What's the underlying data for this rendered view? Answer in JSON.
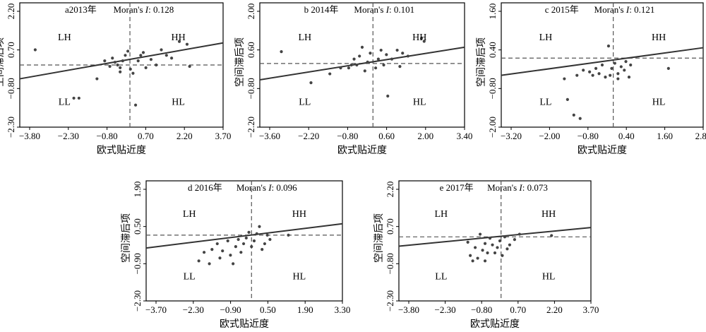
{
  "chart_data": [
    {
      "type": "scatter",
      "panel_label": "a2013年",
      "moran_prefix": "Moran's ",
      "moran_italic": "I",
      "moran_value": ": 0.128",
      "xlabel": "欧式贴近度",
      "ylabel": "空间滞后项",
      "xticks": [
        "−3.80",
        "−2.30",
        "−0.80",
        "0.70",
        "2.20",
        "3.70"
      ],
      "yticks": [
        "2.20",
        "0.70",
        "−0.80",
        "−2.30"
      ],
      "xlim": [
        -4.2,
        3.7
      ],
      "ylim": [
        -2.3,
        2.2
      ],
      "quadrants": [
        "LH",
        "HH",
        "LL",
        "HL"
      ],
      "hline": -0.05,
      "vline": 0.08,
      "fit": [
        [
          -4.2,
          -0.55
        ],
        [
          3.7,
          0.75
        ]
      ],
      "points": [
        [
          -3.6,
          0.5
        ],
        [
          -2.1,
          -1.25
        ],
        [
          -1.9,
          -1.25
        ],
        [
          -1.2,
          -0.55
        ],
        [
          -0.9,
          0.1
        ],
        [
          -0.7,
          -0.1
        ],
        [
          -0.6,
          0.2
        ],
        [
          -0.5,
          0.05
        ],
        [
          -0.4,
          -0.05
        ],
        [
          -0.3,
          -0.15
        ],
        [
          -0.2,
          0.1
        ],
        [
          -0.1,
          0.3
        ],
        [
          0.0,
          0.45
        ],
        [
          0.1,
          -0.2
        ],
        [
          0.2,
          -0.35
        ],
        [
          0.3,
          -1.5
        ],
        [
          0.4,
          0.1
        ],
        [
          0.5,
          0.3
        ],
        [
          0.6,
          0.4
        ],
        [
          0.9,
          0.15
        ],
        [
          1.1,
          -0.05
        ],
        [
          1.3,
          0.5
        ],
        [
          1.5,
          0.3
        ],
        [
          1.7,
          0.2
        ],
        [
          2.0,
          0.8
        ],
        [
          2.3,
          0.7
        ],
        [
          2.4,
          -0.1
        ],
        [
          -0.3,
          -0.3
        ],
        [
          0.7,
          -0.15
        ]
      ]
    },
    {
      "type": "scatter",
      "panel_label": "b 2014年",
      "moran_prefix": "Moran's ",
      "moran_italic": "I",
      "moran_value": ": 0.101",
      "xlabel": "欧式贴近度",
      "ylabel": "空间滞后项",
      "xticks": [
        "−3.60",
        "−2.20",
        "−0.80",
        "0.60",
        "2.00",
        "3.40"
      ],
      "yticks": [
        "2.00",
        "0.60",
        "−0.80",
        "−2.20"
      ],
      "xlim": [
        -4.2,
        3.4
      ],
      "ylim": [
        -2.2,
        2.0
      ],
      "quadrants": [
        "LH",
        "HH",
        "LL",
        "HL"
      ],
      "hline": -0.05,
      "vline": 0.0,
      "fit": [
        [
          -4.2,
          -0.6
        ],
        [
          3.4,
          0.5
        ]
      ],
      "points": [
        [
          -3.4,
          0.35
        ],
        [
          -2.3,
          -0.7
        ],
        [
          -1.6,
          -0.4
        ],
        [
          -1.2,
          -0.2
        ],
        [
          -0.9,
          -0.2
        ],
        [
          -0.7,
          0.1
        ],
        [
          -0.6,
          -0.1
        ],
        [
          -0.5,
          0.2
        ],
        [
          -0.4,
          0.5
        ],
        [
          -0.3,
          -0.3
        ],
        [
          -0.2,
          0.0
        ],
        [
          -0.1,
          0.3
        ],
        [
          0.1,
          -0.2
        ],
        [
          0.2,
          0.1
        ],
        [
          0.3,
          0.4
        ],
        [
          0.4,
          -0.1
        ],
        [
          0.5,
          0.25
        ],
        [
          0.55,
          -1.15
        ],
        [
          0.7,
          0.1
        ],
        [
          0.9,
          0.4
        ],
        [
          1.0,
          -0.15
        ],
        [
          1.1,
          0.3
        ],
        [
          1.3,
          0.2
        ],
        [
          1.8,
          0.8
        ],
        [
          1.9,
          0.7
        ],
        [
          -0.8,
          -0.1
        ]
      ]
    },
    {
      "type": "scatter",
      "panel_label": "c 2015年",
      "moran_prefix": "Moran's ",
      "moran_italic": "I",
      "moran_value": ": 0.121",
      "xlabel": "欧式贴近度",
      "ylabel": "空间滞后项",
      "xticks": [
        "−3.20",
        "−2.00",
        "−0.80",
        "0.40",
        "1.60",
        "2.80"
      ],
      "yticks": [
        "1.60",
        "0.40",
        "−0.80",
        "−2.00"
      ],
      "xlim": [
        -3.6,
        2.8
      ],
      "ylim": [
        -2.0,
        1.6
      ],
      "quadrants": [
        "LH",
        "HH",
        "LL",
        "HL"
      ],
      "hline": 0.0,
      "vline": -0.05,
      "fit": [
        [
          -3.6,
          -0.5
        ],
        [
          2.8,
          0.3
        ]
      ],
      "points": [
        [
          -1.5,
          -1.2
        ],
        [
          -1.3,
          -1.65
        ],
        [
          -1.1,
          -1.75
        ],
        [
          -1.6,
          -0.6
        ],
        [
          -1.2,
          -0.5
        ],
        [
          -1.0,
          -0.35
        ],
        [
          -0.8,
          -0.4
        ],
        [
          -0.6,
          -0.3
        ],
        [
          -0.5,
          -0.45
        ],
        [
          -0.4,
          -0.2
        ],
        [
          -0.3,
          -0.55
        ],
        [
          -0.2,
          0.35
        ],
        [
          -0.15,
          -0.5
        ],
        [
          -0.1,
          -0.3
        ],
        [
          0.0,
          -0.15
        ],
        [
          0.1,
          -0.45
        ],
        [
          0.2,
          -0.25
        ],
        [
          0.3,
          -0.35
        ],
        [
          0.35,
          -0.1
        ],
        [
          0.45,
          -0.55
        ],
        [
          0.5,
          -0.2
        ],
        [
          1.7,
          -0.3
        ],
        [
          -0.7,
          -0.5
        ],
        [
          0.1,
          -0.6
        ]
      ]
    },
    {
      "type": "scatter",
      "panel_label": "d 2016年",
      "moran_prefix": "Moran's ",
      "moran_italic": "I",
      "moran_value": ": 0.096",
      "xlabel": "欧式贴近度",
      "ylabel": "空间滞后项",
      "xticks": [
        "−3.70",
        "−2.30",
        "−0.90",
        "0.50",
        "1.90",
        "3.30"
      ],
      "yticks": [
        "1.90",
        "0.50",
        "−0.90",
        "−2.30"
      ],
      "xlim": [
        -4.0,
        3.45
      ],
      "ylim": [
        -2.3,
        1.9
      ],
      "quadrants": [
        "LH",
        "HH",
        "LL",
        "HL"
      ],
      "hline": 0.0,
      "vline": 0.0,
      "fit": [
        [
          -4.0,
          -0.45
        ],
        [
          3.45,
          0.4
        ]
      ],
      "points": [
        [
          -2.0,
          -0.9
        ],
        [
          -1.8,
          -0.6
        ],
        [
          -1.6,
          -1.0
        ],
        [
          -1.5,
          -0.5
        ],
        [
          -1.3,
          -0.3
        ],
        [
          -1.1,
          -0.55
        ],
        [
          -0.9,
          -0.2
        ],
        [
          -0.8,
          -0.7
        ],
        [
          -0.7,
          -1.0
        ],
        [
          -0.6,
          -0.4
        ],
        [
          -0.5,
          -0.15
        ],
        [
          -0.4,
          -0.6
        ],
        [
          -0.3,
          -0.3
        ],
        [
          -0.2,
          -0.1
        ],
        [
          -0.1,
          0.1
        ],
        [
          0.0,
          -0.4
        ],
        [
          0.1,
          -0.2
        ],
        [
          0.2,
          0.05
        ],
        [
          0.3,
          0.3
        ],
        [
          0.4,
          -0.5
        ],
        [
          0.5,
          -0.3
        ],
        [
          0.6,
          0.0
        ],
        [
          0.7,
          -0.15
        ],
        [
          1.4,
          0.0
        ],
        [
          -1.2,
          -0.8
        ]
      ]
    },
    {
      "type": "scatter",
      "panel_label": "e 2017年",
      "moran_prefix": "Moran's ",
      "moran_italic": "I",
      "moran_value": ": 0.073",
      "xlabel": "欧式贴近度",
      "ylabel": "空间滞后项",
      "xticks": [
        "−3.80",
        "−2.30",
        "−0.80",
        "0.70",
        "2.20",
        "3.70"
      ],
      "yticks": [
        "2.20",
        "0.70",
        "−0.80",
        "−2.30"
      ],
      "xlim": [
        -4.1,
        3.7
      ],
      "ylim": [
        -2.3,
        2.2
      ],
      "quadrants": [
        "LH",
        "HH",
        "LL",
        "HL"
      ],
      "hline": 0.1,
      "vline": 0.05,
      "fit": [
        [
          -4.1,
          -0.25
        ],
        [
          3.7,
          0.45
        ]
      ],
      "points": [
        [
          -1.3,
          -0.1
        ],
        [
          -1.2,
          -0.6
        ],
        [
          -1.1,
          -0.8
        ],
        [
          -1.0,
          -0.3
        ],
        [
          -0.9,
          -0.7
        ],
        [
          -0.8,
          0.2
        ],
        [
          -0.7,
          -0.4
        ],
        [
          -0.6,
          -0.15
        ],
        [
          -0.5,
          -0.5
        ],
        [
          -0.4,
          0.05
        ],
        [
          -0.3,
          -0.2
        ],
        [
          -0.2,
          -0.5
        ],
        [
          -0.1,
          -0.3
        ],
        [
          0.0,
          -0.05
        ],
        [
          0.1,
          -0.6
        ],
        [
          0.2,
          0.1
        ],
        [
          0.3,
          -0.35
        ],
        [
          0.4,
          -0.2
        ],
        [
          0.6,
          0.0
        ],
        [
          0.8,
          0.2
        ],
        [
          2.1,
          0.15
        ],
        [
          -0.6,
          -0.8
        ]
      ]
    }
  ]
}
